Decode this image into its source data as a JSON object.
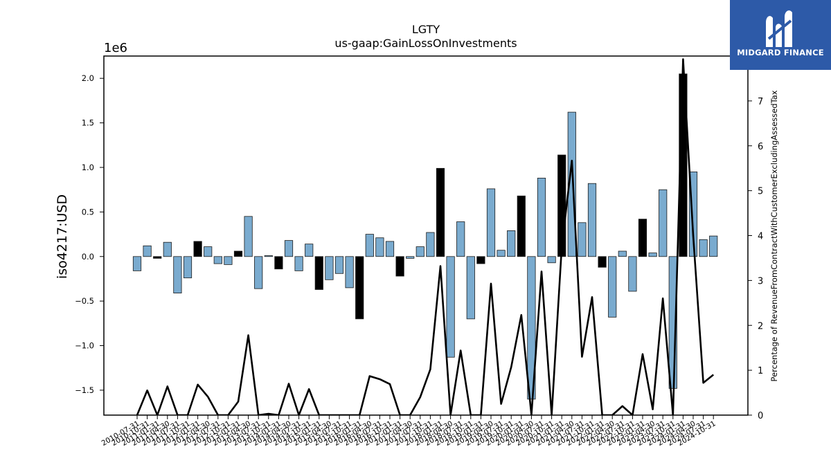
{
  "brand": {
    "name": "MIDGARD FINANCE",
    "colors": {
      "background": "#2d5aa8",
      "text": "#ffffff"
    }
  },
  "chart_data": {
    "type": "bar",
    "title": "LGTY",
    "subtitle": "us-gaap:GainLossOnInvestments",
    "ylabel": "iso4217:USD",
    "y_scale_label": "1e6",
    "y2label": "Percentage of RevenueFromContractWithCustomerExcludingAssessedTax",
    "ylim": [
      -1.78,
      2.25
    ],
    "y2lim": [
      0,
      8.0
    ],
    "yticks": [
      -1.5,
      -1.0,
      -0.5,
      0.0,
      0.5,
      1.0,
      1.5,
      2.0
    ],
    "ytick_labels": [
      "−1.5",
      "−1.0",
      "−0.5",
      "0.0",
      "0.5",
      "1.0",
      "1.5",
      "2.0"
    ],
    "y2ticks": [
      0,
      1,
      2,
      3,
      4,
      5,
      6,
      7
    ],
    "y2tick_labels": [
      "0",
      "1",
      "2",
      "3",
      "4",
      "5",
      "6",
      "7"
    ],
    "colors": {
      "bar": "#7aabcf",
      "bar_highlight": "#000000",
      "edge": "#1a1a1a",
      "line": "#000000"
    },
    "categories": [
      "2010-07-31",
      "2010-10-31",
      "2011-01-31",
      "2011-04-30",
      "2011-07-31",
      "2011-10-31",
      "2012-01-31",
      "2012-04-30",
      "2012-07-31",
      "2012-10-31",
      "2013-01-31",
      "2013-04-30",
      "2013-07-31",
      "2013-10-31",
      "2014-01-31",
      "2014-04-30",
      "2014-07-31",
      "2014-10-31",
      "2015-01-31",
      "2015-04-30",
      "2015-07-31",
      "2015-10-31",
      "2016-01-31",
      "2016-04-30",
      "2016-07-31",
      "2016-10-31",
      "2017-01-31",
      "2017-04-30",
      "2017-07-31",
      "2017-10-31",
      "2018-01-31",
      "2018-04-30",
      "2018-07-31",
      "2018-10-31",
      "2019-01-31",
      "2019-04-30",
      "2019-07-31",
      "2019-10-31",
      "2020-01-31",
      "2020-04-30",
      "2020-07-31",
      "2020-10-31",
      "2021-01-31",
      "2021-04-30",
      "2021-07-31",
      "2021-10-31",
      "2022-01-31",
      "2022-04-30",
      "2022-07-31",
      "2022-10-31",
      "2023-01-31",
      "2023-04-30",
      "2023-07-31",
      "2023-10-31",
      "2024-01-31",
      "2024-04-30",
      "2024-07-31",
      "2024-10-31"
    ],
    "xtick_labels": [
      "2010-07-31",
      "2010-10-31",
      "2011-01-31",
      "2011-04-30",
      "2011-07-31",
      "2011-10-31",
      "2012-01-31",
      "2012-04-30",
      "2012-07-31",
      "2012-10-31",
      "2013-01-31",
      "2013-04-30",
      "2013-07-31",
      "2013-10-31",
      "2014-01-31",
      "2014-04-30",
      "2014-07-31",
      "2014-10-31",
      "2015-01-31",
      "2015-04-30",
      "2015-07-31",
      "2015-10-31",
      "2016-01-31",
      "2016-04-30",
      "2016-07-31",
      "2016-10-31",
      "2017-01-31",
      "2017-04-30",
      "2017-07-31",
      "2017-10-31",
      "2018-01-31",
      "2018-04-30",
      "2018-07-31",
      "2018-10-31",
      "2019-01-31",
      "2019-04-30",
      "2019-07-31",
      "2019-10-31",
      "2020-01-31",
      "2020-04-30",
      "2020-07-31",
      "2020-10-31",
      "2021-01-31",
      "2021-04-30",
      "2021-07-31",
      "2021-10-31",
      "2022-01-31",
      "2022-04-30",
      "2022-07-31",
      "2022-10-31",
      "2023-01-31",
      "2023-04-30",
      "2023-07-31",
      "2023-10-31",
      "2024-01-31",
      "2024-04-30",
      "2024-07-31",
      "2024-10-31"
    ],
    "series": [
      {
        "type": "bar",
        "values": [
          -0.16,
          0.12,
          -0.02,
          0.16,
          -0.41,
          -0.24,
          0.17,
          0.11,
          -0.08,
          -0.09,
          0.06,
          0.45,
          -0.36,
          0.01,
          -0.14,
          0.18,
          -0.16,
          0.14,
          -0.37,
          -0.26,
          -0.19,
          -0.35,
          -0.7,
          0.25,
          0.21,
          0.17,
          -0.22,
          -0.02,
          0.11,
          0.27,
          0.99,
          -1.13,
          0.39,
          -0.7,
          -0.08,
          0.76,
          0.07,
          0.29,
          0.68,
          -1.6,
          0.88,
          -0.07,
          1.14,
          1.62,
          0.38,
          0.82,
          -0.12,
          -0.68,
          0.06,
          -0.39,
          0.42,
          0.04,
          0.75,
          -1.48,
          2.05,
          0.95,
          0.19,
          0.23
        ],
        "highlight": [
          false,
          false,
          true,
          false,
          false,
          false,
          true,
          false,
          false,
          false,
          true,
          false,
          false,
          false,
          true,
          false,
          false,
          false,
          true,
          false,
          false,
          false,
          true,
          false,
          false,
          false,
          true,
          false,
          false,
          false,
          true,
          false,
          false,
          false,
          true,
          false,
          false,
          false,
          true,
          false,
          false,
          false,
          true,
          false,
          false,
          false,
          true,
          false,
          false,
          false,
          true,
          false,
          false,
          false,
          true,
          false,
          false,
          false
        ]
      },
      {
        "type": "line",
        "axis": "right",
        "values": [
          0,
          0.55,
          0,
          0.64,
          0,
          0,
          0.68,
          0.41,
          0,
          0,
          0.3,
          1.78,
          0,
          0.03,
          0,
          0.7,
          0,
          0.58,
          0,
          0,
          0,
          0,
          0,
          0.87,
          0.8,
          0.69,
          0,
          0,
          0.4,
          1.02,
          3.32,
          0,
          1.44,
          0,
          0,
          2.93,
          0.25,
          1.07,
          2.23,
          0,
          3.2,
          0,
          3.75,
          5.67,
          1.3,
          2.63,
          0,
          0,
          0.2,
          0,
          1.36,
          0.13,
          2.6,
          0,
          7.93,
          4.0,
          0.72,
          0.9
        ]
      }
    ]
  }
}
